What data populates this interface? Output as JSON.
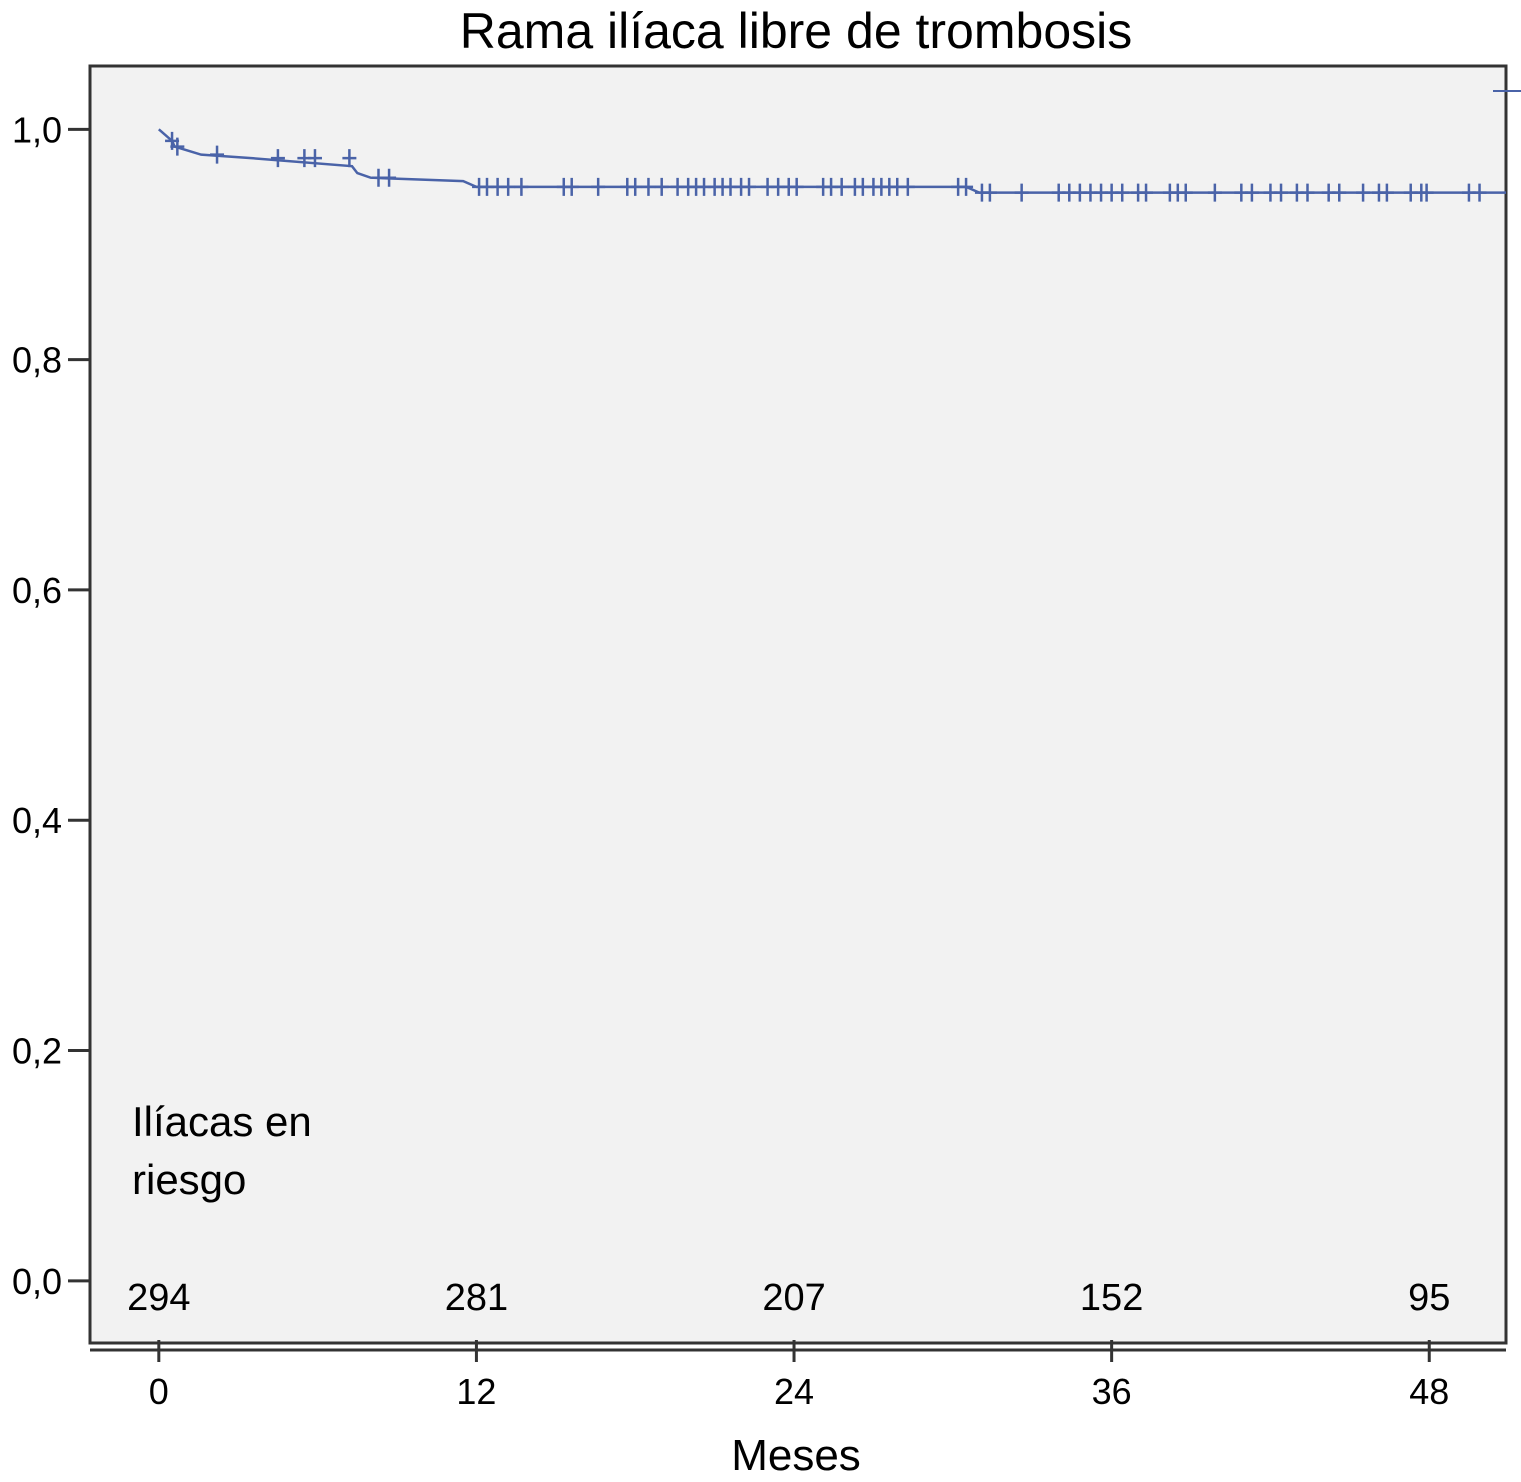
{
  "chart_data": {
    "type": "line",
    "title": "Rama ilíaca libre de trombosis",
    "xlabel": "Meses",
    "ylabel": "",
    "xlim": [
      -2.6,
      50.9
    ],
    "ylim": [
      -0.054,
      1.055
    ],
    "x_ticks": [
      0,
      12,
      24,
      36,
      48
    ],
    "x_tick_labels": [
      "0",
      "12",
      "24",
      "36",
      "48"
    ],
    "y_ticks": [
      0.0,
      0.2,
      0.4,
      0.6,
      0.8,
      1.0
    ],
    "y_tick_labels": [
      "0,0",
      "0,2",
      "0,4",
      "0,6",
      "0,8",
      "1,0"
    ],
    "grid": false,
    "series": [
      {
        "color": "#4a63a8",
        "step_points": [
          [
            0,
            1.0
          ],
          [
            0.5,
            0.99
          ],
          [
            0.6,
            0.985
          ],
          [
            1.6,
            0.978
          ],
          [
            3.5,
            0.975
          ],
          [
            7.3,
            0.968
          ],
          [
            7.5,
            0.962
          ],
          [
            8.0,
            0.958
          ],
          [
            11.5,
            0.955
          ],
          [
            12.0,
            0.95
          ],
          [
            30.5,
            0.95
          ],
          [
            31.0,
            0.945
          ],
          [
            50.9,
            0.945
          ]
        ],
        "censor_marks": [
          [
            0.5,
            0.99
          ],
          [
            0.7,
            0.985
          ],
          [
            2.2,
            0.978
          ],
          [
            4.5,
            0.975
          ],
          [
            5.5,
            0.975
          ],
          [
            5.9,
            0.975
          ],
          [
            7.2,
            0.975
          ],
          [
            8.3,
            0.958
          ],
          [
            8.7,
            0.958
          ],
          [
            12.1,
            0.95
          ],
          [
            12.4,
            0.95
          ],
          [
            12.8,
            0.95
          ],
          [
            13.2,
            0.95
          ],
          [
            13.7,
            0.95
          ],
          [
            15.3,
            0.95
          ],
          [
            15.6,
            0.95
          ],
          [
            16.6,
            0.95
          ],
          [
            17.7,
            0.95
          ],
          [
            18.0,
            0.95
          ],
          [
            18.5,
            0.95
          ],
          [
            19.0,
            0.95
          ],
          [
            19.6,
            0.95
          ],
          [
            20.0,
            0.95
          ],
          [
            20.3,
            0.95
          ],
          [
            20.6,
            0.95
          ],
          [
            21.0,
            0.95
          ],
          [
            21.3,
            0.95
          ],
          [
            21.6,
            0.95
          ],
          [
            22.0,
            0.95
          ],
          [
            22.3,
            0.95
          ],
          [
            23.0,
            0.95
          ],
          [
            23.4,
            0.95
          ],
          [
            23.8,
            0.95
          ],
          [
            24.1,
            0.95
          ],
          [
            25.1,
            0.95
          ],
          [
            25.4,
            0.95
          ],
          [
            25.8,
            0.95
          ],
          [
            26.3,
            0.95
          ],
          [
            26.6,
            0.95
          ],
          [
            27.0,
            0.95
          ],
          [
            27.3,
            0.95
          ],
          [
            27.6,
            0.95
          ],
          [
            27.9,
            0.95
          ],
          [
            28.3,
            0.95
          ],
          [
            30.2,
            0.95
          ],
          [
            30.5,
            0.95
          ],
          [
            31.1,
            0.945
          ],
          [
            31.4,
            0.945
          ],
          [
            32.6,
            0.945
          ],
          [
            34.0,
            0.945
          ],
          [
            34.4,
            0.945
          ],
          [
            34.8,
            0.945
          ],
          [
            35.2,
            0.945
          ],
          [
            35.6,
            0.945
          ],
          [
            36.0,
            0.945
          ],
          [
            36.4,
            0.945
          ],
          [
            37.0,
            0.945
          ],
          [
            37.3,
            0.945
          ],
          [
            38.2,
            0.945
          ],
          [
            38.5,
            0.945
          ],
          [
            38.8,
            0.945
          ],
          [
            39.9,
            0.945
          ],
          [
            40.9,
            0.945
          ],
          [
            41.3,
            0.945
          ],
          [
            42.0,
            0.945
          ],
          [
            42.4,
            0.945
          ],
          [
            43.0,
            0.945
          ],
          [
            43.4,
            0.945
          ],
          [
            44.2,
            0.945
          ],
          [
            44.6,
            0.945
          ],
          [
            45.5,
            0.945
          ],
          [
            46.1,
            0.945
          ],
          [
            46.4,
            0.945
          ],
          [
            47.3,
            0.945
          ],
          [
            47.7,
            0.945
          ],
          [
            47.9,
            0.945
          ],
          [
            49.5,
            0.945
          ],
          [
            49.9,
            0.945
          ]
        ]
      }
    ],
    "at_risk": {
      "label_line1": "Ilíacas en",
      "label_line2": "riesgo",
      "times": [
        0,
        12,
        24,
        36,
        48
      ],
      "values": [
        "294",
        "281",
        "207",
        "152",
        "95"
      ]
    }
  }
}
